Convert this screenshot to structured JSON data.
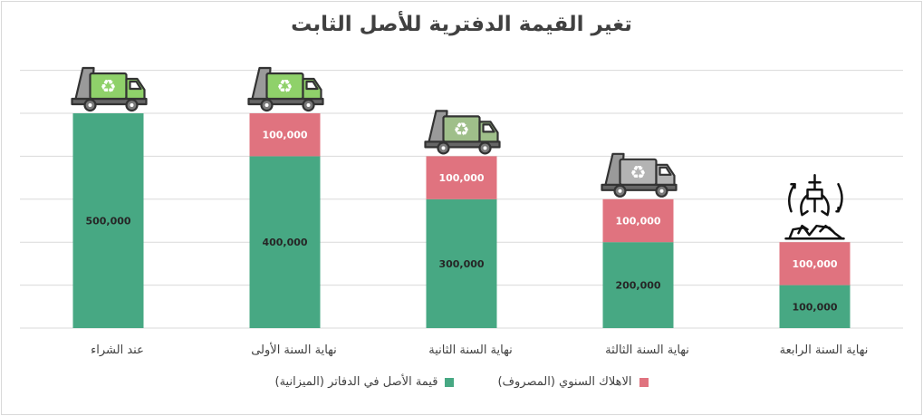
{
  "chart_data": {
    "type": "bar",
    "stacked": true,
    "title": "تغير القيمة الدفترية للأصل الثابت",
    "categories": [
      "عند الشراء",
      "نهاية السنة الأولى",
      "نهاية السنة الثانية",
      "نهاية السنة الثالثة",
      "نهاية السنة الرابعة"
    ],
    "series": [
      {
        "name": "قيمة الأصل في الدفاتر (الميزانية)",
        "color": "#47a883",
        "values": [
          500000,
          400000,
          300000,
          200000,
          100000
        ]
      },
      {
        "name": "الاهلاك السنوي (المصروف)",
        "color": "#e0737f",
        "values": [
          0,
          100000,
          100000,
          100000,
          100000
        ]
      }
    ],
    "data_labels": {
      "book_value": [
        "500,000",
        "400,000",
        "300,000",
        "200,000",
        "100,000"
      ],
      "depreciation": [
        "",
        "100,000",
        "100,000",
        "100,000",
        "100,000"
      ]
    },
    "ylim": [
      0,
      500000
    ],
    "grid": true,
    "legend_position": "bottom",
    "icons": [
      "garbage-truck-icon",
      "garbage-truck-icon",
      "garbage-truck-icon",
      "garbage-truck-icon",
      "crane-claw-scrap-icon"
    ],
    "truck_colors": [
      "#8fd16a",
      "#8fd16a",
      "#9fbf8a",
      "#b3b3b3"
    ]
  }
}
